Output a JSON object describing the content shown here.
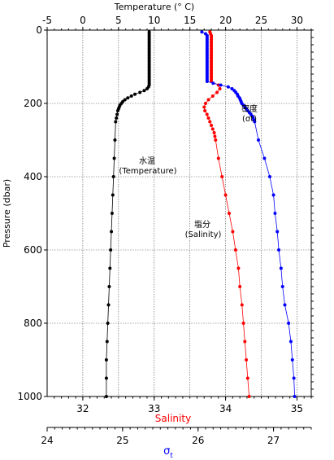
{
  "chart_data": {
    "type": "scatter",
    "axes": {
      "temperature": {
        "label": "Temperature (° C)",
        "range": [
          -5,
          32
        ],
        "ticks": [
          -5,
          0,
          5,
          10,
          15,
          20,
          25,
          30
        ],
        "color": "#000000"
      },
      "pressure": {
        "label": "Pressure (dbar)",
        "range": [
          0,
          1000
        ],
        "ticks": [
          0,
          200,
          400,
          600,
          800,
          1000
        ],
        "reversed": true,
        "color": "#000000"
      },
      "salinity": {
        "label": "Salinity",
        "range": [
          31.5,
          35.2
        ],
        "ticks": [
          32,
          33,
          34,
          35
        ],
        "color": "#ff0000"
      },
      "sigma": {
        "label": "σ",
        "label_sub": "t",
        "range": [
          24,
          27.5
        ],
        "ticks": [
          24,
          25,
          26,
          27
        ],
        "color": "#0000ff"
      }
    },
    "grid": true,
    "series": [
      {
        "name": "水温",
        "axis": "temperature",
        "color": "#000000",
        "pressure": [
          5,
          10,
          15,
          20,
          25,
          30,
          35,
          40,
          45,
          50,
          55,
          60,
          65,
          70,
          75,
          80,
          85,
          90,
          95,
          100,
          105,
          110,
          115,
          120,
          125,
          130,
          135,
          140,
          145,
          150,
          155,
          160,
          165,
          170,
          175,
          180,
          185,
          190,
          195,
          200,
          205,
          210,
          215,
          220,
          230,
          240,
          250,
          300,
          350,
          400,
          450,
          500,
          550,
          600,
          650,
          700,
          750,
          800,
          850,
          900,
          950,
          1000
        ],
        "values": [
          9.3,
          9.3,
          9.3,
          9.3,
          9.3,
          9.3,
          9.3,
          9.3,
          9.3,
          9.3,
          9.3,
          9.3,
          9.3,
          9.3,
          9.3,
          9.3,
          9.3,
          9.3,
          9.3,
          9.3,
          9.3,
          9.3,
          9.3,
          9.3,
          9.3,
          9.3,
          9.3,
          9.3,
          9.3,
          9.3,
          9.2,
          9.0,
          8.6,
          8.0,
          7.3,
          6.8,
          6.3,
          5.9,
          5.6,
          5.4,
          5.2,
          5.1,
          5.0,
          4.9,
          4.8,
          4.7,
          4.6,
          4.5,
          4.4,
          4.3,
          4.2,
          4.1,
          4.0,
          3.9,
          3.8,
          3.7,
          3.6,
          3.5,
          3.4,
          3.3,
          3.3,
          3.3
        ]
      },
      {
        "name": "塩分",
        "axis": "salinity",
        "color": "#ff0000",
        "pressure": [
          5,
          10,
          15,
          20,
          25,
          30,
          35,
          40,
          45,
          50,
          55,
          60,
          65,
          70,
          75,
          80,
          85,
          90,
          95,
          100,
          105,
          110,
          115,
          120,
          125,
          130,
          135,
          140,
          150,
          160,
          170,
          180,
          190,
          200,
          210,
          220,
          230,
          240,
          250,
          260,
          270,
          280,
          290,
          300,
          350,
          400,
          450,
          500,
          550,
          600,
          650,
          700,
          750,
          800,
          850,
          900,
          950,
          1000
        ],
        "values": [
          33.78,
          33.79,
          33.8,
          33.8,
          33.8,
          33.8,
          33.8,
          33.8,
          33.8,
          33.8,
          33.8,
          33.8,
          33.8,
          33.8,
          33.8,
          33.8,
          33.8,
          33.8,
          33.8,
          33.8,
          33.8,
          33.8,
          33.8,
          33.8,
          33.8,
          33.8,
          33.8,
          33.8,
          33.9,
          33.92,
          33.88,
          33.82,
          33.76,
          33.72,
          33.7,
          33.71,
          33.74,
          33.76,
          33.78,
          33.8,
          33.82,
          33.84,
          33.85,
          33.86,
          33.9,
          33.95,
          34.0,
          34.05,
          34.1,
          34.14,
          34.18,
          34.2,
          34.23,
          34.25,
          34.27,
          34.29,
          34.31,
          34.33
        ]
      },
      {
        "name": "密度",
        "axis": "sigma",
        "color": "#0000ff",
        "pressure": [
          5,
          10,
          15,
          20,
          25,
          30,
          35,
          40,
          45,
          50,
          55,
          60,
          65,
          70,
          75,
          80,
          85,
          90,
          95,
          100,
          105,
          110,
          115,
          120,
          125,
          130,
          135,
          140,
          145,
          150,
          155,
          160,
          165,
          170,
          175,
          180,
          185,
          190,
          195,
          200,
          205,
          210,
          215,
          220,
          225,
          230,
          235,
          240,
          245,
          250,
          300,
          350,
          400,
          450,
          500,
          550,
          600,
          650,
          700,
          750,
          800,
          850,
          900,
          950,
          1000
        ],
        "values": [
          26.05,
          26.1,
          26.12,
          26.12,
          26.12,
          26.12,
          26.12,
          26.12,
          26.12,
          26.12,
          26.12,
          26.12,
          26.12,
          26.12,
          26.12,
          26.12,
          26.12,
          26.12,
          26.12,
          26.12,
          26.12,
          26.12,
          26.12,
          26.12,
          26.12,
          26.12,
          26.12,
          26.12,
          26.2,
          26.3,
          26.4,
          26.45,
          26.48,
          26.5,
          26.52,
          26.53,
          26.55,
          26.56,
          26.57,
          26.58,
          26.6,
          26.62,
          26.64,
          26.66,
          26.68,
          26.7,
          26.72,
          26.73,
          26.74,
          26.75,
          26.8,
          26.88,
          26.95,
          27.0,
          27.02,
          27.05,
          27.07,
          27.1,
          27.12,
          27.15,
          27.2,
          27.23,
          27.25,
          27.27,
          27.28
        ]
      }
    ],
    "annotations": [
      {
        "text": "水温",
        "series": "水温"
      },
      {
        "text": "(Temperature)",
        "series": "水温"
      },
      {
        "text": "塩分",
        "series": "塩分"
      },
      {
        "text": "(Salinity)",
        "series": "塩分"
      },
      {
        "text": "密度",
        "series": "密度"
      },
      {
        "text": "(σt)",
        "series": "密度"
      }
    ]
  }
}
